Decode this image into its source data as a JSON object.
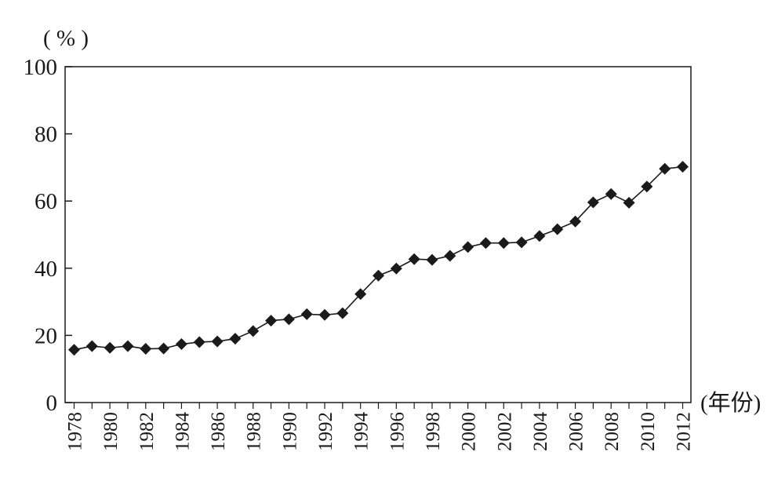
{
  "chart_data": {
    "type": "line",
    "title": "",
    "ylabel": "( % )",
    "xlabel": "(年份)",
    "ylim": [
      0,
      100
    ],
    "yticks": [
      "0",
      "20",
      "40",
      "60",
      "80",
      "100"
    ],
    "xlim": [
      1978,
      2012
    ],
    "xtick_labels": [
      "1978",
      "1980",
      "1982",
      "1984",
      "1986",
      "1988",
      "1990",
      "1992",
      "1994",
      "1996",
      "1998",
      "2000",
      "2002",
      "2004",
      "2006",
      "2008",
      "2010",
      "2012"
    ],
    "marker": "diamond",
    "line_color": "#1a1a1a",
    "grid": false,
    "x": [
      1978,
      1979,
      1980,
      1981,
      1982,
      1983,
      1984,
      1985,
      1986,
      1987,
      1988,
      1989,
      1990,
      1991,
      1992,
      1993,
      1994,
      1995,
      1996,
      1997,
      1998,
      1999,
      2000,
      2001,
      2002,
      2003,
      2004,
      2005,
      2006,
      2007,
      2008,
      2009,
      2010,
      2011,
      2012
    ],
    "series": [
      {
        "values": [
          15.7,
          16.8,
          16.3,
          16.8,
          16.0,
          16.1,
          17.4,
          18.0,
          18.2,
          19.0,
          21.3,
          24.4,
          24.8,
          26.3,
          26.1,
          26.6,
          32.3,
          37.8,
          39.9,
          42.7,
          42.5,
          43.7,
          46.3,
          47.5,
          47.5,
          47.7,
          49.6,
          51.6,
          53.9,
          59.6,
          62.1,
          59.5,
          64.3,
          69.6,
          70.2
        ]
      }
    ]
  }
}
